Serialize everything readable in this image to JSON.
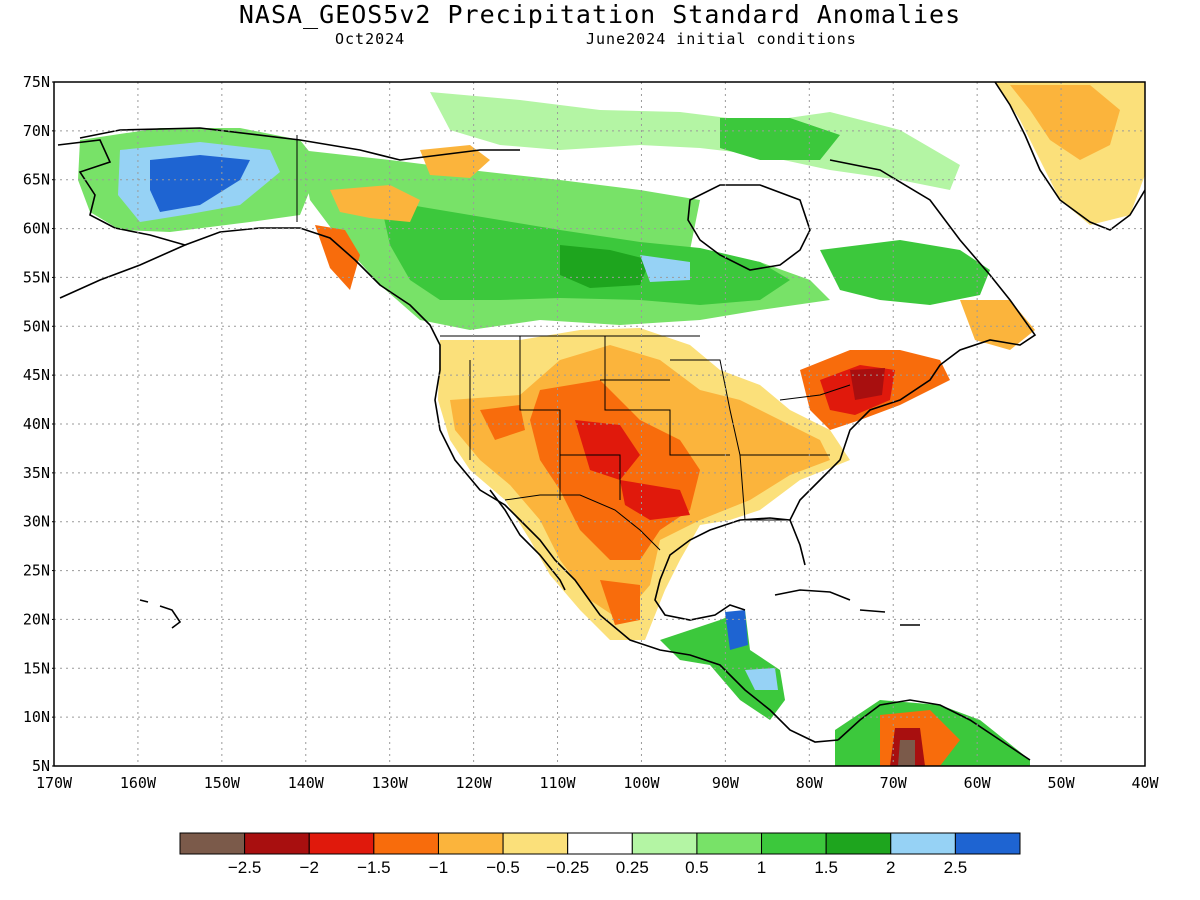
{
  "title": "NASA_GEOS5v2 Precipitation Standard Anomalies",
  "subtitle_left": "Oct2024",
  "subtitle_right": "June2024 initial conditions",
  "lat_labels": [
    "75N",
    "70N",
    "65N",
    "60N",
    "55N",
    "50N",
    "45N",
    "40N",
    "35N",
    "30N",
    "25N",
    "20N",
    "15N",
    "10N",
    "5N"
  ],
  "lon_labels": [
    "170W",
    "160W",
    "150W",
    "140W",
    "130W",
    "120W",
    "110W",
    "100W",
    "90W",
    "80W",
    "70W",
    "60W",
    "50W",
    "40W"
  ],
  "colorbar": {
    "colors": [
      "#7b5a4a",
      "#a80f0f",
      "#e0190c",
      "#f86c0c",
      "#fbb43c",
      "#fbe07a",
      "#ffffff",
      "#b4f5a4",
      "#78e268",
      "#3cc83c",
      "#1ea51e",
      "#96d2f5",
      "#1e64d2"
    ],
    "labels": [
      "−2.5",
      "−2",
      "−1.5",
      "−1",
      "−0.5",
      "−0.25",
      "0.25",
      "0.5",
      "1",
      "1.5",
      "2",
      "2.5"
    ]
  }
}
